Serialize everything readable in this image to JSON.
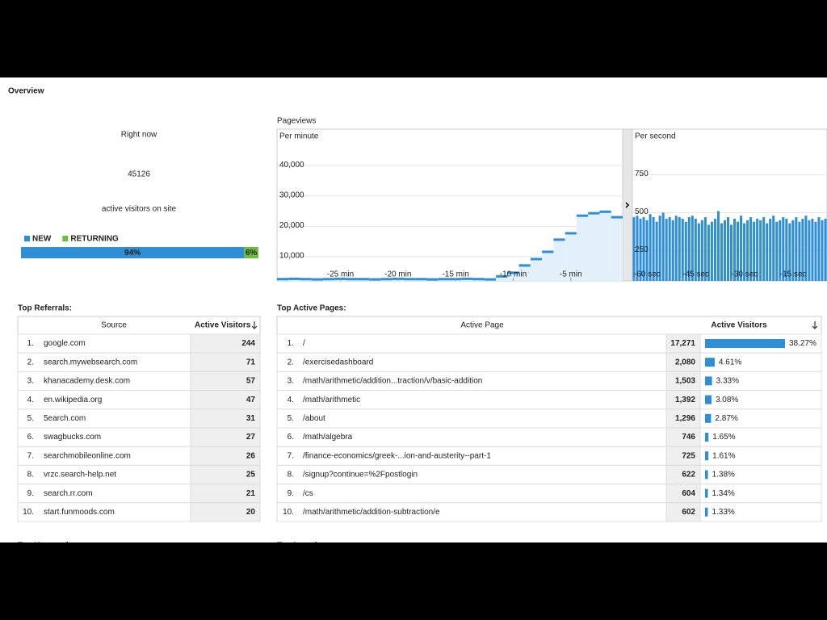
{
  "header": {
    "title": "Overview"
  },
  "right_now": {
    "title": "Right now",
    "count": 45126,
    "caption": "active visitors on site",
    "legend": [
      {
        "name": "NEW",
        "color": "#2f8fd6"
      },
      {
        "name": "RETURNING",
        "color": "#6cbf3c"
      }
    ],
    "values": [
      94,
      6
    ],
    "value_labels": [
      "94%",
      "6%"
    ]
  },
  "pageviews_title": "Pageviews",
  "chart_data": [
    {
      "type": "step",
      "title": "Per minute",
      "x": [
        -30,
        -29,
        -28,
        -27,
        -26,
        -25,
        -24,
        -23,
        -22,
        -21,
        -20,
        -19,
        -18,
        -17,
        -16,
        -15,
        -14,
        -13,
        -12,
        -11,
        -10,
        -9,
        -8,
        -7,
        -6,
        -5,
        -4,
        -3,
        -2,
        -1
      ],
      "values": [
        2600,
        2700,
        2600,
        2500,
        2600,
        2700,
        2600,
        2600,
        2500,
        2600,
        2700,
        2600,
        2600,
        2500,
        2600,
        2600,
        2700,
        2600,
        2500,
        3500,
        4700,
        7100,
        9200,
        11600,
        15600,
        17700,
        23500,
        24300,
        24800,
        23000
      ],
      "xlim": [
        -30.5,
        -0.5
      ],
      "xticks": [
        {
          "value": -25,
          "label": "-25 min"
        },
        {
          "value": -20,
          "label": "-20 min"
        },
        {
          "value": -15,
          "label": "-15 min"
        },
        {
          "value": -10,
          "label": "-10 min"
        },
        {
          "value": -5,
          "label": "-5 min"
        }
      ],
      "ylim": [
        2000,
        52000
      ],
      "yticks": [
        {
          "value": 10000,
          "label": "10,000"
        },
        {
          "value": 20000,
          "label": "20,000"
        },
        {
          "value": 30000,
          "label": "30,000"
        },
        {
          "value": 40000,
          "label": "40,000"
        }
      ],
      "color": "#2f8fd6",
      "grid": true
    },
    {
      "type": "bar",
      "title": "Per second",
      "x": [
        -60,
        -59,
        -58,
        -57,
        -56,
        -55,
        -54,
        -53,
        -52,
        -51,
        -50,
        -49,
        -48,
        -47,
        -46,
        -45,
        -44,
        -43,
        -42,
        -41,
        -40,
        -39,
        -38,
        -37,
        -36,
        -35,
        -34,
        -33,
        -32,
        -31,
        -30,
        -29,
        -28,
        -27,
        -26,
        -25,
        -24,
        -23,
        -22,
        -21,
        -20,
        -19,
        -18,
        -17,
        -16,
        -15,
        -14,
        -13,
        -12,
        -11,
        -10,
        -9,
        -8,
        -7,
        -6,
        -5,
        -4,
        -3,
        -2,
        -1
      ],
      "values": [
        470,
        480,
        460,
        470,
        450,
        490,
        470,
        440,
        480,
        500,
        460,
        470,
        450,
        480,
        470,
        460,
        440,
        470,
        480,
        460,
        430,
        450,
        470,
        420,
        440,
        460,
        510,
        430,
        450,
        470,
        420,
        460,
        440,
        480,
        430,
        450,
        470,
        440,
        460,
        450,
        470,
        430,
        460,
        480,
        440,
        450,
        470,
        460,
        430,
        450,
        470,
        440,
        460,
        480,
        450,
        460,
        440,
        470,
        450,
        460
      ],
      "xlim": [
        -60.5,
        -0.5
      ],
      "xticks": [
        {
          "value": -60,
          "label": "-60 sec"
        },
        {
          "value": -45,
          "label": "-45 sec"
        },
        {
          "value": -30,
          "label": "-30 sec"
        },
        {
          "value": -15,
          "label": "-15 sec"
        }
      ],
      "ylim": [
        50,
        1050
      ],
      "yticks": [
        250,
        500,
        750
      ],
      "color": "#2f8fd6",
      "grid": true
    }
  ],
  "top_referrals": {
    "title": "Top Referrals:",
    "columns": [
      "Source",
      "Active Visitors"
    ],
    "rows": [
      {
        "rank": "1.",
        "source": "google.com",
        "visitors": 244
      },
      {
        "rank": "2.",
        "source": "search.mywebsearch.com",
        "visitors": 71
      },
      {
        "rank": "3.",
        "source": "khanacademy.desk.com",
        "visitors": 57
      },
      {
        "rank": "4.",
        "source": "en.wikipedia.org",
        "visitors": 47
      },
      {
        "rank": "5.",
        "source": "5earch.com",
        "visitors": 31
      },
      {
        "rank": "6.",
        "source": "swagbucks.com",
        "visitors": 27
      },
      {
        "rank": "7.",
        "source": "searchmobileonline.com",
        "visitors": 26
      },
      {
        "rank": "8.",
        "source": "vrzc.search-help.net",
        "visitors": 25
      },
      {
        "rank": "9.",
        "source": "search.rr.com",
        "visitors": 21
      },
      {
        "rank": "10.",
        "source": "start.funmoods.com",
        "visitors": 20
      }
    ]
  },
  "top_active_pages": {
    "title": "Top Active Pages:",
    "columns": [
      "Active Page",
      "Active Visitors"
    ],
    "rows": [
      {
        "rank": "1.",
        "page": "/",
        "visitors": "17,271",
        "share": 38.27,
        "share_label": "38.27%"
      },
      {
        "rank": "2.",
        "page": "/exercisedashboard",
        "visitors": "2,080",
        "share": 4.61,
        "share_label": "4.61%"
      },
      {
        "rank": "3.",
        "page": "/math/arithmetic/addition...traction/v/basic-addition",
        "visitors": "1,503",
        "share": 3.33,
        "share_label": "3.33%"
      },
      {
        "rank": "4.",
        "page": "/math/arithmetic",
        "visitors": "1,392",
        "share": 3.08,
        "share_label": "3.08%"
      },
      {
        "rank": "5.",
        "page": "/about",
        "visitors": "1,296",
        "share": 2.87,
        "share_label": "2.87%"
      },
      {
        "rank": "6.",
        "page": "/math/algebra",
        "visitors": "746",
        "share": 1.65,
        "share_label": "1.65%"
      },
      {
        "rank": "7.",
        "page": "/finance-economics/greek-...ion-and-austerity--part-1",
        "visitors": "725",
        "share": 1.61,
        "share_label": "1.61%"
      },
      {
        "rank": "8.",
        "page": "/signup?continue=%2Fpostlogin",
        "visitors": "622",
        "share": 1.38,
        "share_label": "1.38%"
      },
      {
        "rank": "9.",
        "page": "/cs",
        "visitors": "604",
        "share": 1.34,
        "share_label": "1.34%"
      },
      {
        "rank": "10.",
        "page": "/math/arithmetic/addition-subtraction/e",
        "visitors": "602",
        "share": 1.33,
        "share_label": "1.33%"
      }
    ]
  },
  "more": {
    "keywords": "Top Keywords:",
    "locations": "Top Locations:"
  }
}
